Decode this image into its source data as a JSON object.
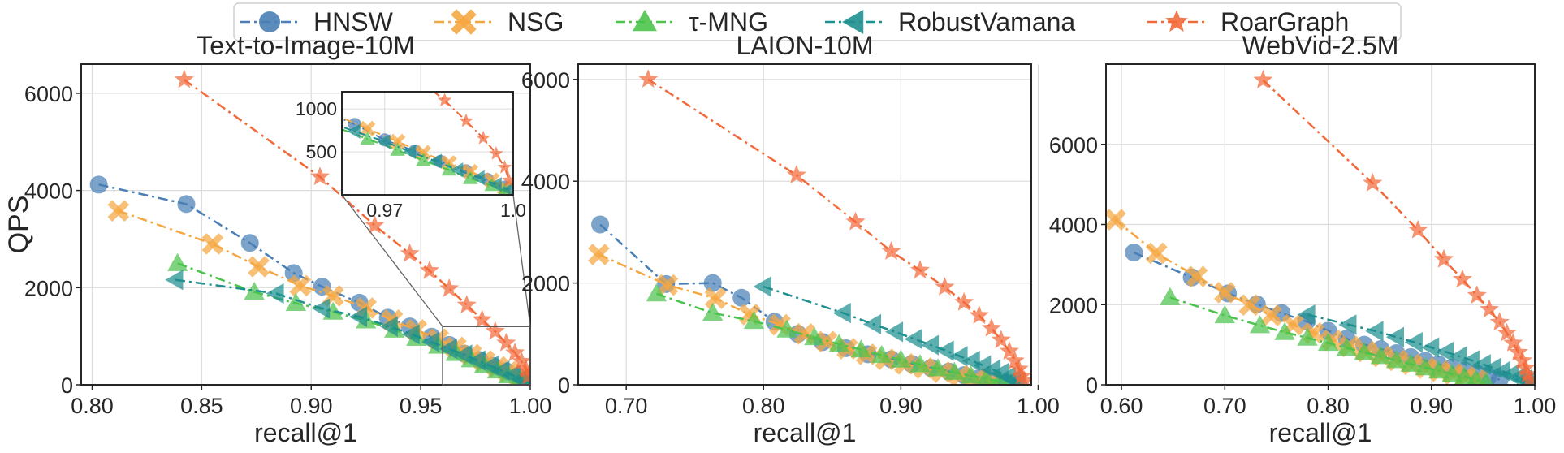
{
  "legend": {
    "placement": "top-center",
    "entries": [
      {
        "name": "HNSW",
        "color": "#4a7fb5",
        "marker": "circle"
      },
      {
        "name": "NSG",
        "color": "#f5a742",
        "marker": "x-cross"
      },
      {
        "name": "τ-MNG",
        "color": "#4cc44c",
        "marker": "triangle-up"
      },
      {
        "name": "RobustVamana",
        "color": "#1f8f8f",
        "marker": "triangle-left"
      },
      {
        "name": "RoarGraph",
        "color": "#f26a3a",
        "marker": "star"
      }
    ]
  },
  "chart_data": [
    {
      "type": "line",
      "title": "Text-to-Image-10M",
      "xlabel": "recall@1",
      "ylabel": "QPS",
      "xlim": [
        0.795,
        1.0
      ],
      "ylim": [
        0,
        6600
      ],
      "xticks": [
        "0.80",
        "0.85",
        "0.90",
        "0.95",
        "1.00"
      ],
      "yticks": [
        "0",
        "2000",
        "4000",
        "6000"
      ],
      "grid": true,
      "series": [
        {
          "name": "HNSW",
          "x": [
            0.803,
            0.843,
            0.872,
            0.892,
            0.905,
            0.922,
            0.935,
            0.945,
            0.955,
            0.963,
            0.97,
            0.977,
            0.983,
            0.989,
            0.994,
            0.998
          ],
          "y": [
            4120,
            3720,
            2920,
            2300,
            2020,
            1690,
            1380,
            1200,
            990,
            820,
            640,
            510,
            390,
            280,
            180,
            90
          ]
        },
        {
          "name": "NSG",
          "x": [
            0.812,
            0.855,
            0.876,
            0.895,
            0.91,
            0.925,
            0.937,
            0.948,
            0.958,
            0.966,
            0.973,
            0.979,
            0.985,
            0.99,
            0.995,
            0.998
          ],
          "y": [
            3580,
            2900,
            2430,
            2040,
            1830,
            1580,
            1330,
            1130,
            940,
            770,
            620,
            490,
            370,
            270,
            170,
            80
          ]
        },
        {
          "name": "τ-MNG",
          "x": [
            0.839,
            0.874,
            0.893,
            0.91,
            0.925,
            0.938,
            0.948,
            0.958,
            0.966,
            0.973,
            0.979,
            0.985,
            0.99,
            0.995,
            0.998
          ],
          "y": [
            2500,
            1910,
            1680,
            1500,
            1320,
            1130,
            960,
            800,
            650,
            520,
            400,
            290,
            190,
            110,
            50
          ]
        },
        {
          "name": "RobustVamana",
          "x": [
            0.838,
            0.884,
            0.905,
            0.922,
            0.936,
            0.946,
            0.955,
            0.963,
            0.97,
            0.976,
            0.982,
            0.987,
            0.992,
            0.996,
            0.999
          ],
          "y": [
            2160,
            1880,
            1570,
            1400,
            1200,
            1040,
            880,
            740,
            620,
            500,
            390,
            290,
            200,
            120,
            60
          ]
        },
        {
          "name": "RoarGraph",
          "x": [
            0.842,
            0.904,
            0.929,
            0.945,
            0.954,
            0.963,
            0.971,
            0.978,
            0.984,
            0.989,
            0.993,
            0.996,
            0.998,
            0.999
          ],
          "y": [
            6280,
            4280,
            3280,
            2700,
            2350,
            1980,
            1640,
            1340,
            1100,
            860,
            660,
            480,
            320,
            170
          ]
        }
      ],
      "inset": {
        "xlim": [
          0.96,
          1.0
        ],
        "ylim": [
          0,
          1200
        ],
        "xticks": [
          "0.97",
          "1.0"
        ],
        "yticks": [
          "500",
          "1000"
        ]
      }
    },
    {
      "type": "line",
      "title": "LAION-10M",
      "xlabel": "recall@1",
      "ylabel": "",
      "xlim": [
        0.665,
        0.995
      ],
      "ylim": [
        0,
        6300
      ],
      "xticks": [
        "0.70",
        "0.80",
        "0.90",
        "1.00"
      ],
      "yticks": [
        "0",
        "2000",
        "4000",
        "6000"
      ],
      "grid": true,
      "series": [
        {
          "name": "HNSW",
          "x": [
            0.681,
            0.729,
            0.763,
            0.784,
            0.808,
            0.825,
            0.843,
            0.86,
            0.876,
            0.893,
            0.908,
            0.922,
            0.935,
            0.946,
            0.957,
            0.967,
            0.977
          ],
          "y": [
            3150,
            1980,
            2000,
            1710,
            1240,
            1000,
            840,
            720,
            600,
            500,
            410,
            330,
            260,
            190,
            130,
            80,
            40
          ]
        },
        {
          "name": "NSG",
          "x": [
            0.68,
            0.73,
            0.765,
            0.79,
            0.812,
            0.83,
            0.846,
            0.861,
            0.875,
            0.889,
            0.903,
            0.917,
            0.93,
            0.943,
            0.955,
            0.966
          ],
          "y": [
            2560,
            1960,
            1700,
            1380,
            1180,
            1000,
            850,
            710,
            600,
            500,
            410,
            330,
            250,
            180,
            120,
            70
          ]
        },
        {
          "name": "τ-MNG",
          "x": [
            0.722,
            0.763,
            0.793,
            0.817,
            0.837,
            0.855,
            0.871,
            0.886,
            0.9,
            0.914,
            0.927,
            0.939,
            0.951,
            0.962,
            0.972,
            0.98
          ],
          "y": [
            1790,
            1410,
            1250,
            1080,
            930,
            800,
            690,
            580,
            490,
            400,
            320,
            250,
            180,
            120,
            70,
            30
          ]
        },
        {
          "name": "RobustVamana",
          "x": [
            0.8,
            0.858,
            0.88,
            0.896,
            0.91,
            0.922,
            0.933,
            0.943,
            0.952,
            0.96,
            0.967,
            0.973,
            0.978,
            0.982,
            0.985
          ],
          "y": [
            1930,
            1410,
            1190,
            1040,
            900,
            780,
            670,
            560,
            470,
            380,
            300,
            230,
            160,
            100,
            50
          ]
        },
        {
          "name": "RoarGraph",
          "x": [
            0.716,
            0.824,
            0.867,
            0.893,
            0.914,
            0.932,
            0.946,
            0.957,
            0.966,
            0.973,
            0.979,
            0.983,
            0.986,
            0.988,
            0.99
          ],
          "y": [
            6000,
            4120,
            3200,
            2620,
            2250,
            1920,
            1620,
            1360,
            1110,
            880,
            660,
            470,
            310,
            170,
            80
          ]
        }
      ]
    },
    {
      "type": "line",
      "title": "WebVid-2.5M",
      "xlabel": "recall@1",
      "ylabel": "",
      "xlim": [
        0.585,
        1.0
      ],
      "ylim": [
        0,
        8000
      ],
      "xticks": [
        "0.60",
        "0.70",
        "0.80",
        "0.90",
        "1.00"
      ],
      "yticks": [
        "0",
        "2000",
        "4000",
        "6000"
      ],
      "grid": true,
      "series": [
        {
          "name": "HNSW",
          "x": [
            0.612,
            0.668,
            0.703,
            0.731,
            0.755,
            0.779,
            0.8,
            0.818,
            0.835,
            0.851,
            0.866,
            0.88,
            0.894,
            0.907,
            0.92,
            0.932,
            0.944,
            0.955,
            0.966
          ],
          "y": [
            3300,
            2680,
            2280,
            2010,
            1790,
            1580,
            1350,
            1150,
            1000,
            890,
            790,
            690,
            600,
            510,
            430,
            350,
            280,
            200,
            130
          ]
        },
        {
          "name": "NSG",
          "x": [
            0.594,
            0.634,
            0.673,
            0.7,
            0.724,
            0.745,
            0.766,
            0.786,
            0.804,
            0.821,
            0.837,
            0.852,
            0.867,
            0.881,
            0.895,
            0.908,
            0.921,
            0.933,
            0.944
          ],
          "y": [
            4120,
            3280,
            2700,
            2300,
            1990,
            1730,
            1500,
            1290,
            1110,
            960,
            830,
            710,
            610,
            510,
            420,
            340,
            270,
            200,
            130
          ]
        },
        {
          "name": "τ-MNG",
          "x": [
            0.647,
            0.7,
            0.734,
            0.758,
            0.78,
            0.8,
            0.818,
            0.835,
            0.851,
            0.866,
            0.88,
            0.894,
            0.907,
            0.92,
            0.932,
            0.943,
            0.953
          ],
          "y": [
            2180,
            1730,
            1480,
            1310,
            1170,
            1040,
            920,
            810,
            710,
            610,
            520,
            430,
            350,
            270,
            200,
            130,
            70
          ]
        },
        {
          "name": "RobustVamana",
          "x": [
            0.78,
            0.82,
            0.846,
            0.866,
            0.884,
            0.9,
            0.914,
            0.927,
            0.939,
            0.95,
            0.96,
            0.969,
            0.977,
            0.984,
            0.99,
            0.994,
            0.997
          ],
          "y": [
            1750,
            1500,
            1340,
            1190,
            1060,
            930,
            820,
            710,
            610,
            510,
            420,
            340,
            260,
            190,
            130,
            80,
            40
          ]
        },
        {
          "name": "RoarGraph",
          "x": [
            0.737,
            0.843,
            0.887,
            0.912,
            0.93,
            0.944,
            0.956,
            0.966,
            0.973,
            0.979,
            0.984,
            0.988,
            0.991,
            0.993,
            0.995
          ],
          "y": [
            7600,
            5030,
            3860,
            3130,
            2630,
            2230,
            1880,
            1560,
            1290,
            1040,
            810,
            600,
            420,
            260,
            130
          ]
        }
      ]
    }
  ]
}
